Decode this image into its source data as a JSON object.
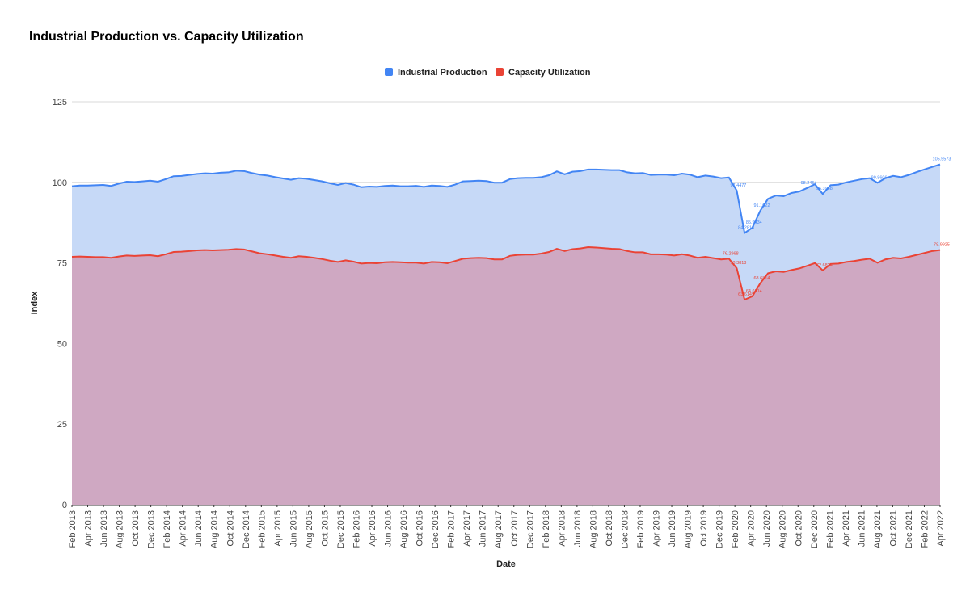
{
  "chart_data": {
    "type": "area",
    "title": "Industrial Production vs. Capacity Utilization",
    "xlabel": "Date",
    "ylabel": "Index",
    "ylim": [
      0,
      125
    ],
    "yticks": [
      0,
      25,
      50,
      75,
      100,
      125
    ],
    "grid": true,
    "legend_position": "top-center",
    "x_tick_labels": [
      "Feb 2013",
      "Apr 2013",
      "Jun 2013",
      "Aug 2013",
      "Oct 2013",
      "Dec 2013",
      "Feb 2014",
      "Apr 2014",
      "Jun 2014",
      "Aug 2014",
      "Oct 2014",
      "Dec 2014",
      "Feb 2015",
      "Apr 2015",
      "Jun 2015",
      "Aug 2015",
      "Oct 2015",
      "Dec 2015",
      "Feb 2016",
      "Apr 2016",
      "Jun 2016",
      "Aug 2016",
      "Oct 2016",
      "Dec 2016",
      "Feb 2017",
      "Apr 2017",
      "Jun 2017",
      "Aug 2017",
      "Oct 2017",
      "Dec 2017",
      "Feb 2018",
      "Apr 2018",
      "Jun 2018",
      "Aug 2018",
      "Oct 2018",
      "Dec 2018",
      "Feb 2019",
      "Apr 2019",
      "Jun 2019",
      "Aug 2019",
      "Oct 2019",
      "Dec 2019",
      "Feb 2020",
      "Apr 2020",
      "Jun 2020",
      "Aug 2020",
      "Oct 2020",
      "Dec 2020",
      "Feb 2021",
      "Apr 2021",
      "Jun 2021",
      "Aug 2021",
      "Oct 2021",
      "Dec 2021",
      "Feb 2022",
      "Apr 2022"
    ],
    "series": [
      {
        "name": "Industrial Production",
        "color": "#4285f4",
        "fill": "#c6d9f7",
        "values": [
          98.8,
          99.0,
          99.0,
          99.1,
          99.2,
          98.9,
          99.6,
          100.2,
          100.1,
          100.3,
          100.5,
          100.2,
          101.0,
          101.9,
          102.0,
          102.3,
          102.6,
          102.8,
          102.7,
          103.0,
          103.1,
          103.6,
          103.5,
          102.9,
          102.4,
          102.1,
          101.6,
          101.2,
          100.8,
          101.3,
          101.1,
          100.7,
          100.3,
          99.7,
          99.2,
          99.8,
          99.3,
          98.5,
          98.7,
          98.6,
          98.9,
          99.0,
          98.8,
          98.8,
          98.9,
          98.6,
          99.0,
          98.9,
          98.6,
          99.3,
          100.3,
          100.4,
          100.5,
          100.4,
          99.9,
          99.9,
          101.0,
          101.3,
          101.4,
          101.4,
          101.6,
          102.2,
          103.4,
          102.5,
          103.3,
          103.5,
          104.0,
          104.0,
          103.9,
          103.8,
          103.8,
          103.1,
          102.8,
          102.9,
          102.3,
          102.4,
          102.4,
          102.2,
          102.7,
          102.4,
          101.6,
          102.1,
          101.8,
          101.3,
          101.5,
          97.4477,
          84.2818,
          85.9434,
          91.1622,
          94.8957,
          95.9074,
          95.7,
          96.7,
          97.1601,
          98.2454,
          99.4076,
          96.3958,
          99.1,
          99.3,
          100.0,
          100.5,
          101.0,
          101.3,
          99.8606,
          101.3,
          102.0,
          101.6,
          102.3,
          103.2,
          104.0,
          104.8,
          105.5573
        ]
      },
      {
        "name": "Capacity Utilization",
        "color": "#ea4335",
        "fill": "#cfa8c2",
        "values": [
          76.9,
          77.0,
          76.9,
          76.8,
          76.8,
          76.6,
          77.0,
          77.3,
          77.2,
          77.3,
          77.4,
          77.1,
          77.7,
          78.4,
          78.5,
          78.7,
          78.9,
          79.0,
          78.9,
          79.0,
          79.1,
          79.3,
          79.2,
          78.6,
          78.0,
          77.7,
          77.3,
          76.9,
          76.6,
          77.1,
          76.9,
          76.6,
          76.2,
          75.7,
          75.3,
          75.8,
          75.4,
          74.8,
          75.0,
          74.9,
          75.2,
          75.3,
          75.2,
          75.1,
          75.1,
          74.8,
          75.3,
          75.2,
          74.9,
          75.6,
          76.3,
          76.5,
          76.6,
          76.5,
          76.1,
          76.1,
          77.2,
          77.5,
          77.6,
          77.6,
          77.9,
          78.4,
          79.4,
          78.7,
          79.3,
          79.5,
          79.9,
          79.8,
          79.6,
          79.4,
          79.3,
          78.7,
          78.3,
          78.3,
          77.7,
          77.7,
          77.6,
          77.3,
          77.7,
          77.3,
          76.6,
          76.9,
          76.5,
          76.1,
          76.2968,
          73.3818,
          63.6149,
          64.6614,
          68.6814,
          71.8,
          72.4,
          72.2,
          72.8,
          73.3,
          74.1,
          74.9577,
          72.6824,
          74.7,
          74.8,
          75.3,
          75.6,
          76.0,
          76.3,
          75.0601,
          76.1,
          76.6,
          76.4,
          76.9,
          77.5,
          78.1,
          78.7,
          78.9925
        ]
      }
    ],
    "annotated_points": [
      {
        "series": "Industrial Production",
        "label": "97.4477"
      },
      {
        "series": "Industrial Production",
        "label": "84.2818"
      },
      {
        "series": "Industrial Production",
        "label": "85.9434"
      },
      {
        "series": "Industrial Production",
        "label": "91.1622"
      },
      {
        "series": "Industrial Production",
        "label": "98.2454"
      },
      {
        "series": "Industrial Production",
        "label": "96.3958"
      },
      {
        "series": "Industrial Production",
        "label": "99.8606"
      },
      {
        "series": "Industrial Production",
        "label": "105.5573"
      },
      {
        "series": "Capacity Utilization",
        "label": "76.2968"
      },
      {
        "series": "Capacity Utilization",
        "label": "73.3818"
      },
      {
        "series": "Capacity Utilization",
        "label": "63.6149"
      },
      {
        "series": "Capacity Utilization",
        "label": "64.6614"
      },
      {
        "series": "Capacity Utilization",
        "label": "68.6814"
      },
      {
        "series": "Capacity Utilization",
        "label": "72.6824"
      },
      {
        "series": "Capacity Utilization",
        "label": "78.9925"
      }
    ]
  }
}
